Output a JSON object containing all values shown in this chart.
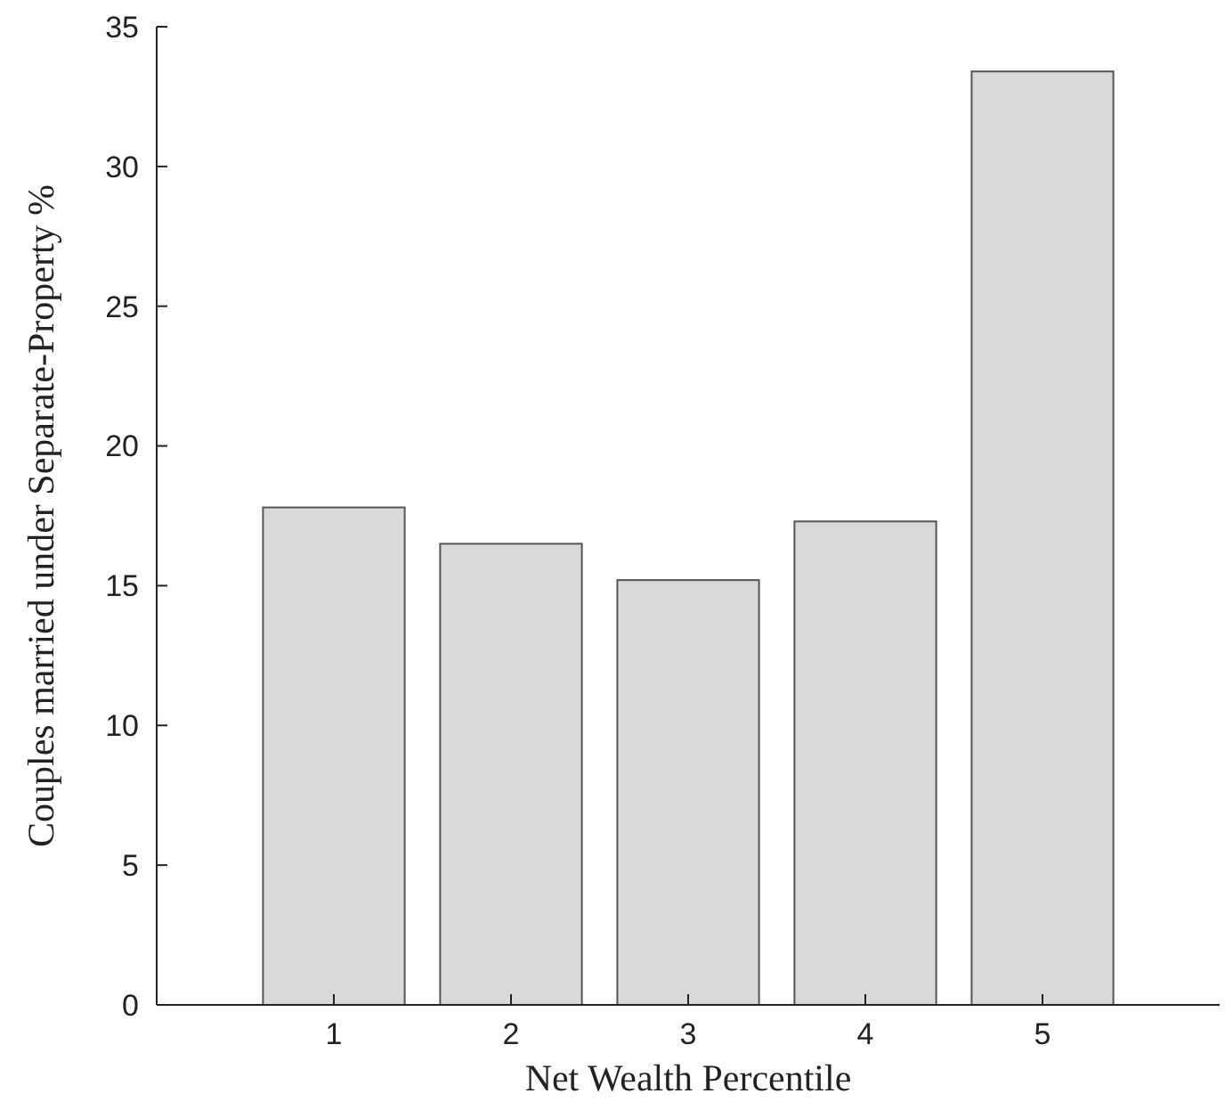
{
  "chart_data": {
    "type": "bar",
    "xlabel": "Net Wealth Percentile",
    "ylabel": "Couples married under Separate-Property %",
    "categories": [
      "1",
      "2",
      "3",
      "4",
      "5"
    ],
    "values": [
      17.8,
      16.5,
      15.2,
      17.3,
      33.4
    ],
    "color": "#d9d9d9",
    "ylim": [
      0,
      35
    ],
    "yticks": [
      0,
      5,
      10,
      15,
      20,
      25,
      30,
      35
    ],
    "grid": false
  }
}
